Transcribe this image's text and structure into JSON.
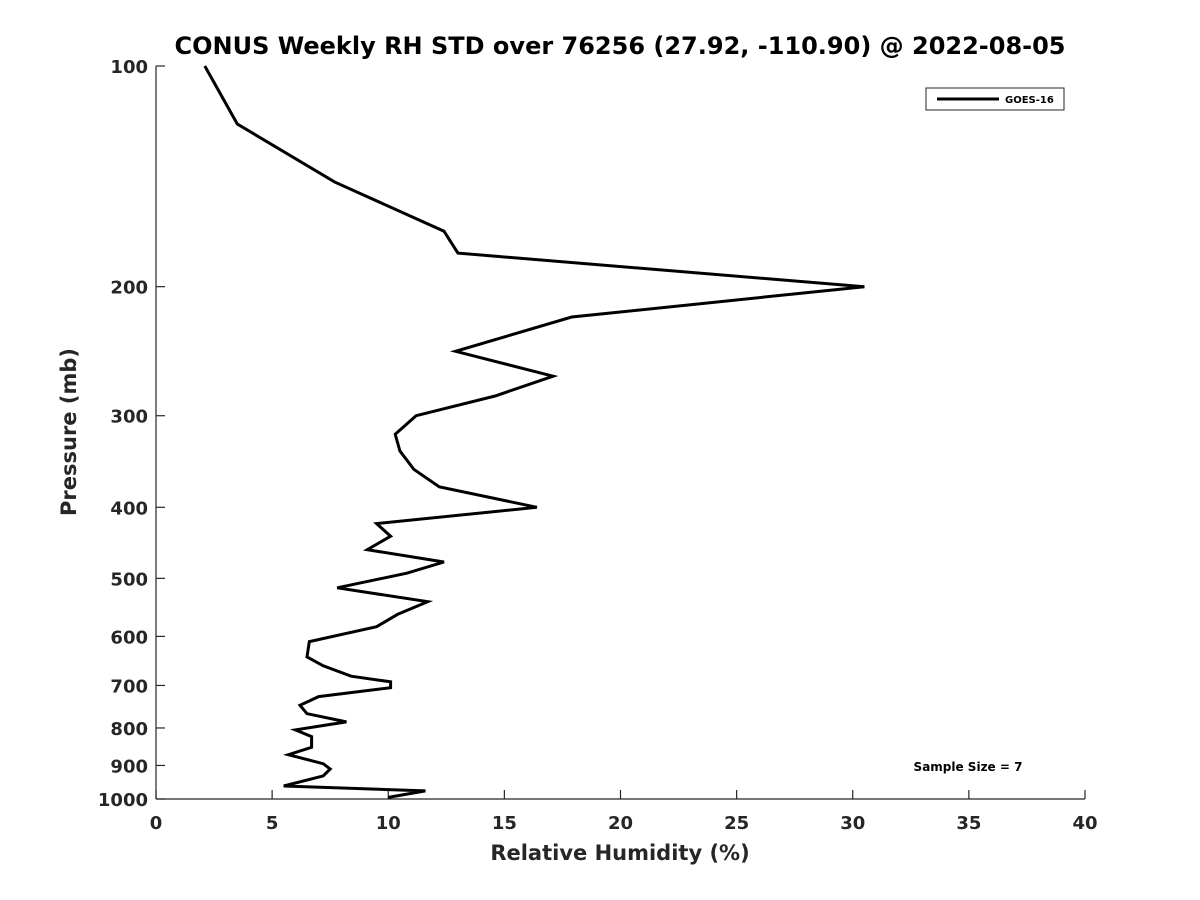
{
  "chart_data": {
    "type": "line",
    "title": "CONUS Weekly RH STD over 76256 (27.92, -110.90) @ 2022-08-05",
    "xlabel": "Relative Humidity (%)",
    "ylabel": "Pressure (mb)",
    "xlim": [
      0,
      40
    ],
    "ylim": [
      100,
      1000
    ],
    "y_scale": "log",
    "y_reversed": true,
    "grid": false,
    "x_ticks": [
      0,
      5,
      10,
      15,
      20,
      25,
      30,
      35,
      40
    ],
    "y_ticks": [
      100,
      200,
      300,
      400,
      500,
      600,
      700,
      800,
      900,
      1000
    ],
    "legend": {
      "placement": "top-right",
      "entries": [
        "GOES-16"
      ]
    },
    "annotation": "Sample Size = 7",
    "series": [
      {
        "name": "GOES-16",
        "color": "#000000",
        "points": [
          [
            2.1,
            100
          ],
          [
            3.5,
            120
          ],
          [
            7.7,
            144
          ],
          [
            12.4,
            168
          ],
          [
            13.0,
            180
          ],
          [
            30.5,
            200
          ],
          [
            17.9,
            220
          ],
          [
            12.9,
            245
          ],
          [
            17.1,
            265
          ],
          [
            14.6,
            282
          ],
          [
            11.2,
            300
          ],
          [
            10.3,
            318
          ],
          [
            10.5,
            335
          ],
          [
            11.1,
            355
          ],
          [
            12.2,
            375
          ],
          [
            16.4,
            400
          ],
          [
            9.5,
            421
          ],
          [
            10.1,
            438
          ],
          [
            9.1,
            457
          ],
          [
            12.4,
            475
          ],
          [
            10.8,
            492
          ],
          [
            7.8,
            515
          ],
          [
            11.7,
            538
          ],
          [
            10.4,
            560
          ],
          [
            9.5,
            582
          ],
          [
            6.6,
            610
          ],
          [
            6.5,
            640
          ],
          [
            7.2,
            658
          ],
          [
            8.4,
            680
          ],
          [
            10.1,
            692
          ],
          [
            10.1,
            705
          ],
          [
            7.0,
            725
          ],
          [
            6.2,
            745
          ],
          [
            6.5,
            765
          ],
          [
            8.2,
            785
          ],
          [
            6.0,
            805
          ],
          [
            6.7,
            822
          ],
          [
            6.7,
            850
          ],
          [
            5.7,
            870
          ],
          [
            7.2,
            895
          ],
          [
            7.5,
            910
          ],
          [
            7.2,
            930
          ],
          [
            5.5,
            960
          ],
          [
            11.6,
            975
          ],
          [
            10.0,
            995
          ]
        ]
      }
    ]
  }
}
